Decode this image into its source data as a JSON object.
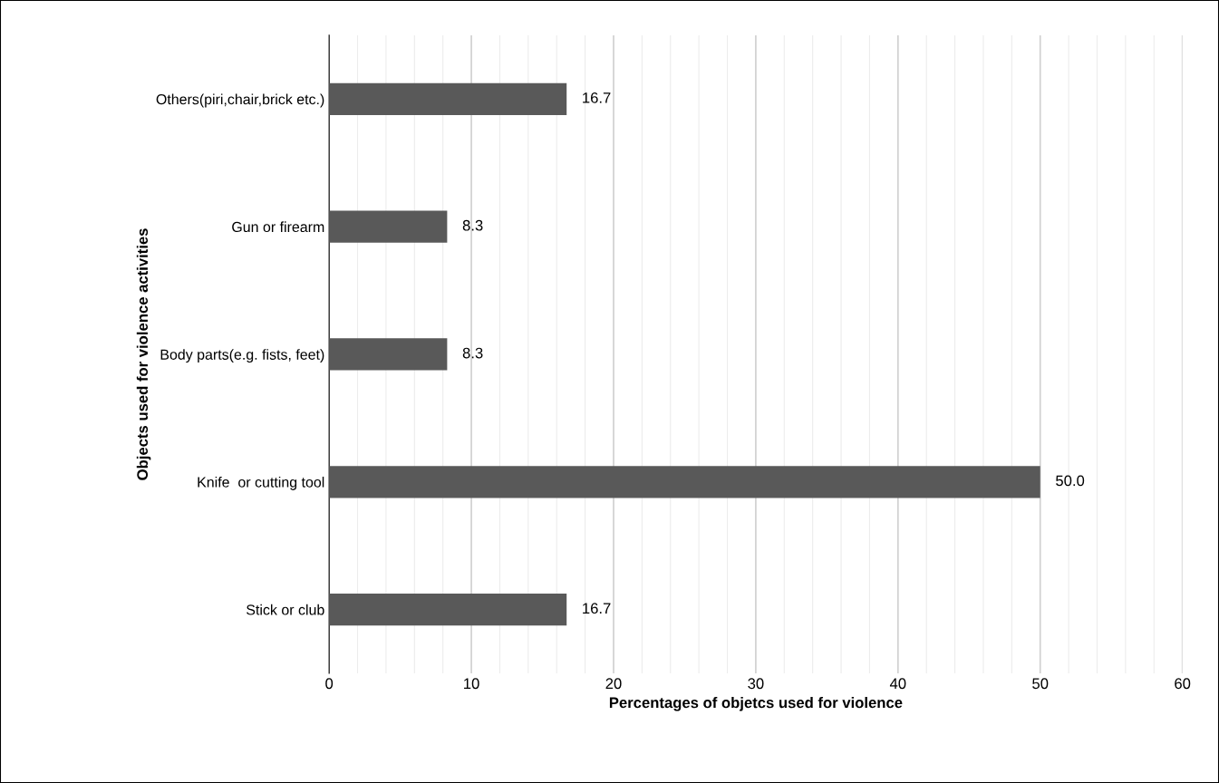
{
  "chart_data": {
    "type": "bar",
    "orientation": "horizontal",
    "xlabel": "Percentages of objetcs used for violence",
    "ylabel": "Objects used for violence activities",
    "categories": [
      "Others(piri,chair,brick etc.)",
      "Gun or firearm",
      "Body parts(e.g. fists, feet)",
      "Knife  or cutting tool",
      "Stick or club"
    ],
    "values": [
      16.7,
      8.3,
      8.3,
      50.0,
      16.7
    ],
    "color": "#595959",
    "value_labels": [
      "16.7",
      "8.3",
      "8.3",
      "50.0",
      "16.7"
    ],
    "xlim": [
      0,
      60
    ],
    "xticks": [
      0,
      {
        "value": 2,
        "label": null
      },
      {
        "value": 4,
        "label": null
      },
      {
        "value": 6,
        "label": null
      },
      {
        "value": 8,
        "label": null
      },
      10,
      {
        "value": 12,
        "label": null
      },
      {
        "value": 14,
        "label": null
      },
      {
        "value": 16,
        "label": null
      },
      {
        "value": 18,
        "label": null
      },
      20,
      {
        "value": 22,
        "label": null
      },
      {
        "value": 24,
        "label": null
      },
      {
        "value": 26,
        "label": null
      },
      {
        "value": 28,
        "label": null
      },
      30,
      {
        "value": 32,
        "label": null
      },
      {
        "value": 34,
        "label": null
      },
      {
        "value": 36,
        "label": null
      },
      {
        "value": 38,
        "label": null
      },
      40,
      {
        "value": 42,
        "label": null
      },
      {
        "value": 44,
        "label": null
      },
      {
        "value": 46,
        "label": null
      },
      {
        "value": 48,
        "label": null
      },
      50,
      {
        "value": 52,
        "label": null
      },
      {
        "value": 54,
        "label": null
      },
      {
        "value": 56,
        "label": null
      },
      {
        "value": 58,
        "label": null
      },
      60
    ],
    "grid": "x"
  }
}
